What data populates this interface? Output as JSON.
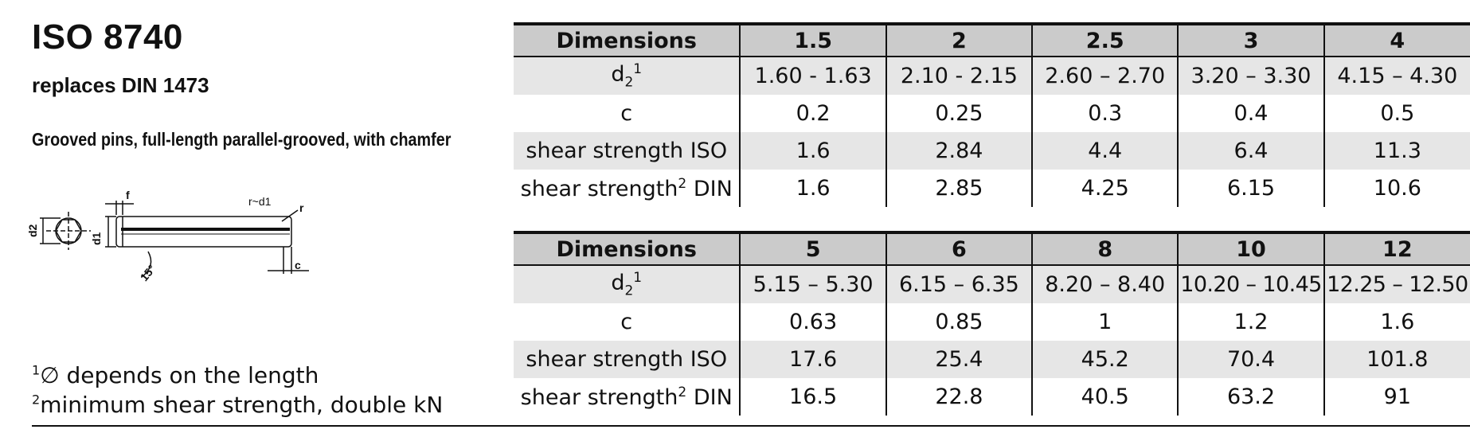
{
  "header": {
    "title": "ISO 8740",
    "subtitle": "replaces DIN 1473",
    "description": "Grooved pins, full-length parallel-grooved, with chamfer"
  },
  "drawing": {
    "labels": {
      "d2": "d2",
      "d1": "d1",
      "f": "f",
      "r_approx": "r~d1",
      "r": "r",
      "angle": "15°",
      "c": "c"
    }
  },
  "tables": [
    {
      "header": [
        "Dimensions",
        "1.5",
        "2",
        "2.5",
        "3",
        "4"
      ],
      "rows": [
        {
          "label": "d",
          "label_sub": "2",
          "label_sup": "1",
          "shaded": true,
          "values": [
            "1.60 - 1.63",
            "2.10 - 2.15",
            "2.60 – 2.70",
            "3.20 – 3.30",
            "4.15 – 4.30"
          ]
        },
        {
          "label": "c",
          "label_sub": "",
          "label_sup": "",
          "shaded": false,
          "values": [
            "0.2",
            "0.25",
            "0.3",
            "0.4",
            "0.5"
          ]
        },
        {
          "label": "shear strength ISO",
          "label_sub": "",
          "label_sup": "",
          "shaded": true,
          "values": [
            "1.6",
            "2.84",
            "4.4",
            "6.4",
            "11.3"
          ]
        },
        {
          "label": "shear strength",
          "label_sub": "",
          "label_sup": "2",
          "label_suffix": " DIN",
          "shaded": false,
          "values": [
            "1.6",
            "2.85",
            "4.25",
            "6.15",
            "10.6"
          ]
        }
      ]
    },
    {
      "header": [
        "Dimensions",
        "5",
        "6",
        "8",
        "10",
        "12"
      ],
      "rows": [
        {
          "label": "d",
          "label_sub": "2",
          "label_sup": "1",
          "shaded": true,
          "values": [
            "5.15 – 5.30",
            "6.15 – 6.35",
            "8.20 – 8.40",
            "10.20 – 10.45",
            "12.25 – 12.50"
          ]
        },
        {
          "label": "c",
          "label_sub": "",
          "label_sup": "",
          "shaded": false,
          "values": [
            "0.63",
            "0.85",
            "1",
            "1.2",
            "1.6"
          ]
        },
        {
          "label": "shear strength ISO",
          "label_sub": "",
          "label_sup": "",
          "shaded": true,
          "values": [
            "17.6",
            "25.4",
            "45.2",
            "70.4",
            "101.8"
          ]
        },
        {
          "label": "shear strength",
          "label_sub": "",
          "label_sup": "2",
          "label_suffix": " DIN",
          "shaded": false,
          "values": [
            "16.5",
            "22.8",
            "40.5",
            "63.2",
            "91"
          ]
        }
      ]
    }
  ],
  "footnotes": [
    {
      "marker": "1",
      "text": "∅ depends on the length"
    },
    {
      "marker": "2",
      "text": "minimum shear strength, double kN"
    }
  ],
  "colors": {
    "header_bg": "#cbcbcb",
    "shaded_row_bg": "#e6e6e6",
    "rule": "#111111"
  }
}
